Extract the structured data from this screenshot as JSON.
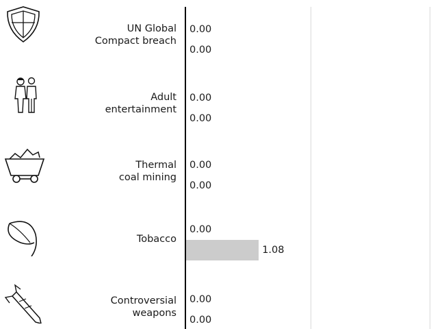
{
  "colors": {
    "bar": "#cccccc",
    "axis": "#000000",
    "separator": "#d9d9d9",
    "text": "#1a1a1a"
  },
  "chart_data": {
    "type": "bar",
    "orientation": "horizontal",
    "categories": [
      {
        "lines": [
          "UN Global",
          "Compact breach"
        ],
        "icon": "shield-icon"
      },
      {
        "lines": [
          "Adult",
          "entertainment"
        ],
        "icon": "adult-couple-icon"
      },
      {
        "lines": [
          "Thermal",
          "coal mining"
        ],
        "icon": "coal-cart-icon"
      },
      {
        "lines": [
          "Tobacco"
        ],
        "icon": "tobacco-leaf-icon"
      },
      {
        "lines": [
          "Controversial",
          "weapons"
        ],
        "icon": "missile-icon"
      }
    ],
    "series": [
      {
        "values_text": [
          "0.00",
          "0.00",
          "0.00",
          "0.00",
          "0.00"
        ],
        "values": [
          0,
          0,
          0,
          0,
          0
        ]
      },
      {
        "values_text": [
          "0.00",
          "0.00",
          "0.00",
          "1.08",
          "0.00"
        ],
        "values": [
          0,
          0,
          0,
          1.08,
          0
        ]
      }
    ],
    "xlim": [
      0,
      4.8
    ],
    "grid": false,
    "legend": "none"
  }
}
